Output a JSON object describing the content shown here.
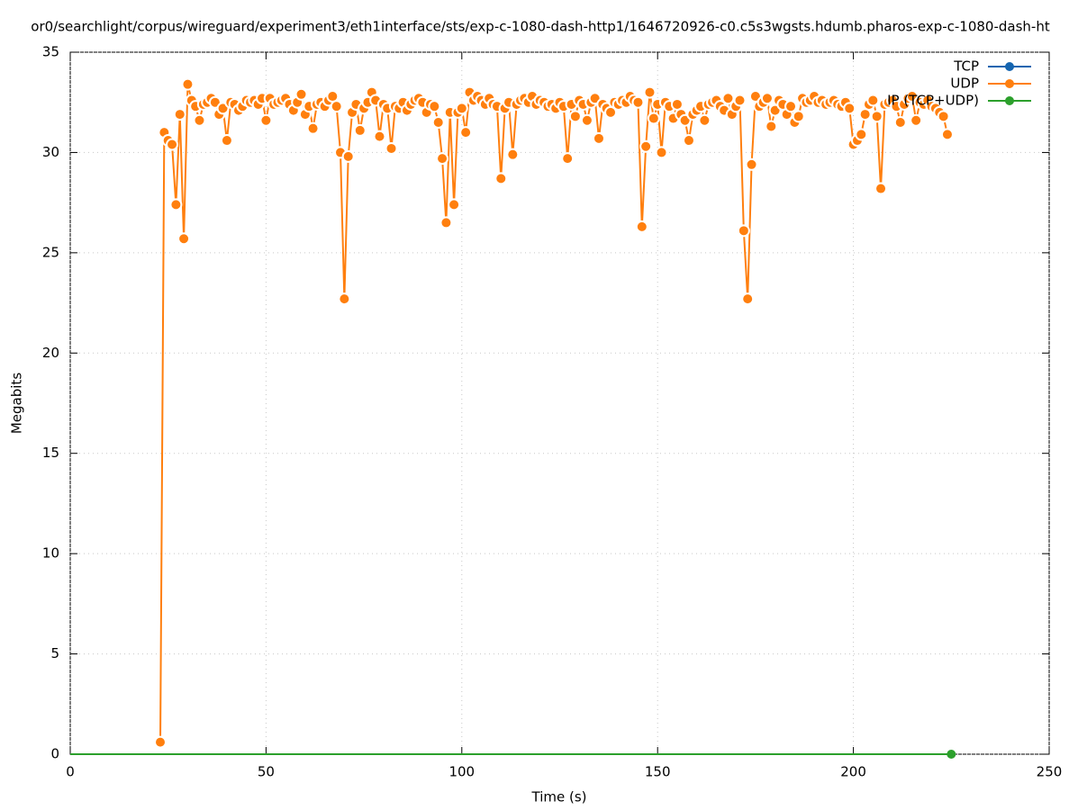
{
  "chart_data": {
    "type": "line",
    "title": "or0/searchlight/corpus/wireguard/experiment3/eth1interface/sts/exp-c-1080-dash-http1/1646720926-c0.c5s3wgsts.hdumb.pharos-exp-c-1080-dash-ht",
    "x_label": "Time (s)",
    "y_label": "Megabits",
    "xlim": [
      0,
      250
    ],
    "xticks": [
      0,
      50,
      100,
      150,
      200,
      250
    ],
    "ylim": [
      0,
      35
    ],
    "yticks": [
      0,
      5,
      10,
      15,
      20,
      25,
      30,
      35
    ],
    "grid": true,
    "legend": "top-right",
    "series": [
      {
        "name": "TCP",
        "color": "#1565b0",
        "x": [],
        "values": []
      },
      {
        "name": "UDP",
        "color": "#ff7f0e",
        "x": [
          23,
          24,
          25,
          26,
          27,
          28,
          29,
          30,
          31,
          32,
          33,
          34,
          35,
          36,
          37,
          38,
          39,
          40,
          41,
          42,
          43,
          44,
          45,
          46,
          47,
          48,
          49,
          50,
          51,
          52,
          53,
          54,
          55,
          56,
          57,
          58,
          59,
          60,
          61,
          62,
          63,
          64,
          65,
          66,
          67,
          68,
          69,
          70,
          71,
          72,
          73,
          74,
          75,
          76,
          77,
          78,
          79,
          80,
          81,
          82,
          83,
          84,
          85,
          86,
          87,
          88,
          89,
          90,
          91,
          92,
          93,
          94,
          95,
          96,
          97,
          98,
          99,
          100,
          101,
          102,
          103,
          104,
          105,
          106,
          107,
          108,
          109,
          110,
          111,
          112,
          113,
          114,
          115,
          116,
          117,
          118,
          119,
          120,
          121,
          122,
          123,
          124,
          125,
          126,
          127,
          128,
          129,
          130,
          131,
          132,
          133,
          134,
          135,
          136,
          137,
          138,
          139,
          140,
          141,
          142,
          143,
          144,
          145,
          146,
          147,
          148,
          149,
          150,
          151,
          152,
          153,
          154,
          155,
          156,
          157,
          158,
          159,
          160,
          161,
          162,
          163,
          164,
          165,
          166,
          167,
          168,
          169,
          170,
          171,
          172,
          173,
          174,
          175,
          176,
          177,
          178,
          179,
          180,
          181,
          182,
          183,
          184,
          185,
          186,
          187,
          188,
          189,
          190,
          191,
          192,
          193,
          194,
          195,
          196,
          197,
          198,
          199,
          200,
          201,
          202,
          203,
          204,
          205,
          206,
          207,
          208,
          209,
          210,
          211,
          212,
          213,
          214,
          215,
          216,
          217,
          218,
          219,
          220,
          221,
          222,
          223,
          224
        ],
        "values": [
          0.6,
          31.0,
          30.6,
          30.4,
          27.4,
          31.9,
          25.7,
          33.4,
          32.6,
          32.3,
          31.6,
          32.4,
          32.5,
          32.7,
          32.5,
          31.9,
          32.2,
          30.6,
          32.5,
          32.4,
          32.1,
          32.3,
          32.6,
          32.5,
          32.6,
          32.4,
          32.7,
          31.6,
          32.7,
          32.4,
          32.5,
          32.6,
          32.7,
          32.4,
          32.1,
          32.5,
          32.9,
          31.9,
          32.3,
          31.2,
          32.4,
          32.5,
          32.3,
          32.6,
          32.8,
          32.3,
          30.0,
          22.7,
          29.8,
          32.0,
          32.4,
          31.1,
          32.2,
          32.5,
          33.0,
          32.6,
          30.8,
          32.4,
          32.2,
          30.2,
          32.3,
          32.2,
          32.5,
          32.1,
          32.4,
          32.6,
          32.7,
          32.5,
          32.0,
          32.4,
          32.3,
          31.5,
          29.7,
          26.5,
          32.0,
          27.4,
          32.0,
          32.2,
          31.0,
          33.0,
          32.6,
          32.8,
          32.6,
          32.4,
          32.7,
          32.4,
          32.3,
          28.7,
          32.2,
          32.5,
          29.9,
          32.4,
          32.6,
          32.7,
          32.5,
          32.8,
          32.4,
          32.6,
          32.5,
          32.3,
          32.4,
          32.2,
          32.5,
          32.3,
          29.7,
          32.4,
          31.8,
          32.6,
          32.4,
          31.6,
          32.5,
          32.7,
          30.7,
          32.4,
          32.2,
          32.0,
          32.5,
          32.4,
          32.6,
          32.5,
          32.8,
          32.6,
          32.5,
          26.3,
          30.3,
          33.0,
          31.7,
          32.4,
          30.0,
          32.5,
          32.3,
          31.7,
          32.4,
          31.9,
          31.6,
          30.6,
          31.9,
          32.1,
          32.3,
          31.6,
          32.4,
          32.5,
          32.6,
          32.3,
          32.1,
          32.7,
          31.9,
          32.3,
          32.6,
          26.1,
          22.7,
          29.4,
          32.8,
          32.3,
          32.5,
          32.7,
          31.3,
          32.1,
          32.6,
          32.4,
          31.9,
          32.3,
          31.5,
          31.8,
          32.7,
          32.5,
          32.6,
          32.8,
          32.5,
          32.6,
          32.4,
          32.5,
          32.6,
          32.4,
          32.3,
          32.5,
          32.2,
          30.4,
          30.6,
          30.9,
          31.9,
          32.4,
          32.6,
          31.8,
          28.2,
          32.4,
          32.5,
          32.6,
          32.3,
          31.5,
          32.4,
          32.7,
          32.8,
          31.6,
          32.5,
          32.4,
          32.6,
          32.3,
          32.2,
          32.0,
          31.8,
          30.9
        ]
      },
      {
        "name": "IP (TCP+UDP)",
        "color": "#2ca02c",
        "x": [
          0,
          225
        ],
        "values": [
          0,
          0
        ]
      }
    ]
  }
}
